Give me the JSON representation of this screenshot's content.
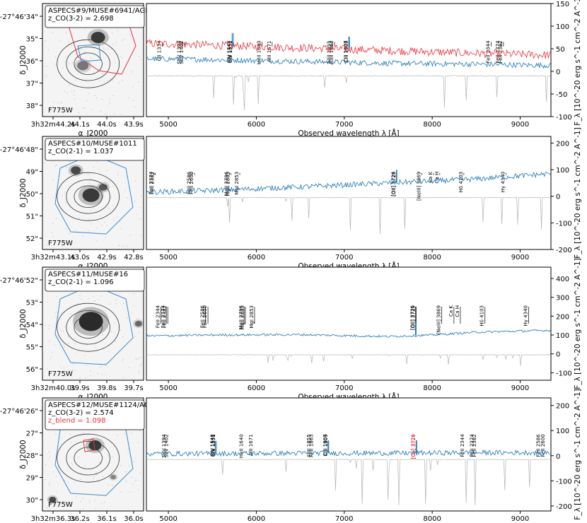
{
  "figure": {
    "shared_xlabel": "Observed wavelength λ [Å]",
    "right_ylabel": "F_λ [10^-20 erg s^-1 cm^-2 A^-1]",
    "image_ylabel": "δ_J2000",
    "image_xlabel": "α_J2000",
    "band_label": "F775W"
  },
  "colors": {
    "spectrum": "#1f77b4",
    "secondary_spectrum": "#e8323c",
    "sky": "#b4b4b4",
    "contour_radio": "#333333",
    "aperture_blue": "#3a8cd0",
    "aperture_red": "#e8323c",
    "zblend_text": "#e8323c"
  },
  "panels": [
    {
      "id": "p1",
      "annotation_lines": [
        "ASPECS#9/MUSE#6941/AGN",
        "z_CO(3-2) = 2.698"
      ],
      "dec_ticks": [
        "-27°46'34\"",
        "35\"",
        "36\"",
        "37\"",
        "38\""
      ],
      "ra_ticks": [
        "3h32m44.2s",
        "44.1s",
        "44.0s",
        "43.9s"
      ],
      "cutout_aperture": "red",
      "chart_data": {
        "type": "line",
        "title": "",
        "xlabel": "Observed wavelength λ [Å]",
        "ylabel": "F_λ [10^-20 erg s^-1 cm^-2 A^-1]",
        "xlim": [
          4750,
          9350
        ],
        "ylim": [
          -100,
          150
        ],
        "y_ticks": [
          -100,
          -50,
          0,
          50,
          100,
          150
        ],
        "x_ticks": [
          5000,
          6000,
          7000,
          8000,
          9000
        ],
        "grid": false,
        "series": [
          {
            "color": "#e8323c",
            "x": [
              4750,
              5500,
              6500,
              7500,
              8500,
              9350
            ],
            "y": [
              62,
              58,
              52,
              46,
              40,
              36
            ],
            "noise": 9
          },
          {
            "color": "#1f77b4",
            "x": [
              4750,
              5500,
              6500,
              7500,
              8500,
              9350
            ],
            "y": [
              28,
              26,
              22,
              18,
              16,
              13
            ],
            "noise": 6
          },
          {
            "color": "#b4b4b4",
            "x": [
              4750,
              9350
            ],
            "y": [
              -10,
              -10
            ],
            "noise": 1
          }
        ],
        "sky_line_depth": 80,
        "line_marker_top": 140,
        "line_marker_bottom": 55,
        "lines": [
          {
            "label": "CII 1334",
            "x": 4930
          },
          {
            "label": "SiIV 1394",
            "x": 5155
          },
          {
            "label": "SiIV 1402",
            "x": 5185
          },
          {
            "label": "SiII 1551",
            "x": 5735
          },
          {
            "label": "CIV 1548",
            "x": 5725
          },
          {
            "label": "CIV 1551",
            "x": 5738
          },
          {
            "label": "HeII 1640",
            "x": 6065
          },
          {
            "label": "AlII 1671",
            "x": 6180
          },
          {
            "label": "AlIII 1855",
            "x": 6860
          },
          {
            "label": "AlIII 1863",
            "x": 6890
          },
          {
            "label": "CIII 1907",
            "x": 7050
          },
          {
            "label": "CIII 1909",
            "x": 7060
          },
          {
            "label": "FeII 2344",
            "x": 8670
          },
          {
            "label": "FeII 2374",
            "x": 8780
          },
          {
            "label": "FeII 2382",
            "x": 8810
          }
        ]
      }
    },
    {
      "id": "p2",
      "annotation_lines": [
        "ASPECS#10/MUSE#1011",
        "z_CO(2-1) = 1.037"
      ],
      "dec_ticks": [
        "-27°46'48\"",
        "49\"",
        "50\"",
        "51\"",
        "52\""
      ],
      "ra_ticks": [
        "3h32m43.1s",
        "43.0s",
        "42.9s",
        "42.8s"
      ],
      "cutout_aperture": "blue",
      "chart_data": {
        "type": "line",
        "title": "",
        "xlabel": "Observed wavelength λ [Å]",
        "ylabel": "F_λ [10^-20 erg s^-1 cm^-2 A^-1]",
        "xlim": [
          4750,
          9350
        ],
        "ylim": [
          -200,
          225
        ],
        "y_ticks": [
          -200,
          -100,
          0,
          100,
          200
        ],
        "x_ticks": [
          5000,
          6000,
          7000,
          8000,
          9000
        ],
        "grid": false,
        "series": [
          {
            "color": "#1f77b4",
            "x": [
              4750,
              5500,
              6500,
              7500,
              8500,
              9350
            ],
            "y": [
              15,
              22,
              35,
              50,
              65,
              85
            ],
            "noise": 10
          },
          {
            "color": "#b4b4b4",
            "x": [
              4750,
              9350
            ],
            "y": [
              -5,
              -5
            ],
            "noise": 1
          }
        ],
        "sky_line_depth": 150,
        "line_marker_top": 215,
        "line_marker_bottom": 80,
        "lines": [
          {
            "label": "FeII 2374",
            "x": 4838
          },
          {
            "label": "FeII 2382",
            "x": 4852
          },
          {
            "label": "FeII 2586",
            "x": 5270
          },
          {
            "label": "FeII 2600",
            "x": 5297
          },
          {
            "label": "MgII 2796",
            "x": 5696
          },
          {
            "label": "MgII 2803",
            "x": 5711
          },
          {
            "label": "MgI 2853",
            "x": 5812
          },
          {
            "label": "[OII] 3726",
            "x": 7592
          },
          {
            "label": "[OII] 3729",
            "x": 7598
          },
          {
            "label": "[NeIII] 3869",
            "x": 7882
          },
          {
            "label": "Ca K",
            "x": 8015
          },
          {
            "label": "Ca H",
            "x": 8086
          },
          {
            "label": "Hδ 4103",
            "x": 8360
          },
          {
            "label": "Hγ 4340",
            "x": 8841
          }
        ]
      }
    },
    {
      "id": "p3",
      "annotation_lines": [
        "ASPECS#11/MUSE#16",
        "z_CO(2-1) = 1.096"
      ],
      "dec_ticks": [
        "-27°46'52\"",
        "53\"",
        "54\"",
        "55\"",
        "56\""
      ],
      "ra_ticks": [
        "3h32m40.0s",
        "39.9s",
        "39.8s",
        "39.7s"
      ],
      "cutout_aperture": "blue",
      "chart_data": {
        "type": "line",
        "title": "",
        "xlabel": "Observed wavelength λ [Å]",
        "ylabel": "F_λ [10^-20 erg s^-1 cm^-2 A^-1]",
        "xlim": [
          4750,
          9350
        ],
        "ylim": [
          -140,
          460
        ],
        "y_ticks": [
          -100,
          0,
          100,
          200,
          300,
          400
        ],
        "x_ticks": [
          5000,
          6000,
          7000,
          8000,
          9000
        ],
        "grid": false,
        "series": [
          {
            "color": "#1f77b4",
            "x": [
              4750,
              5500,
              6500,
              7500,
              8000,
              8500,
              9350
            ],
            "y": [
              95,
              100,
              102,
              92,
              100,
              115,
              125
            ],
            "noise": 6
          },
          {
            "color": "#b4b4b4",
            "x": [
              4750,
              9350
            ],
            "y": [
              -5,
              -5
            ],
            "noise": 1
          }
        ],
        "sky_line_depth": 60,
        "line_marker_top": 430,
        "line_marker_bottom": 160,
        "lines": [
          {
            "label": "FeII 2344",
            "x": 4913
          },
          {
            "label": "FeII 2374",
            "x": 4976
          },
          {
            "label": "FeII 2382",
            "x": 4993
          },
          {
            "label": "FeII 2586",
            "x": 5421
          },
          {
            "label": "FeII 2600",
            "x": 5450
          },
          {
            "label": "MgII 2796",
            "x": 5861
          },
          {
            "label": "MgII 2803",
            "x": 5876
          },
          {
            "label": "MgI 2853",
            "x": 5980
          },
          {
            "label": "[OII] 3726",
            "x": 7810
          },
          {
            "label": "[OII] 3729",
            "x": 7817
          },
          {
            "label": "[NeIII] 3869",
            "x": 8109
          },
          {
            "label": "Ca K",
            "x": 8247
          },
          {
            "label": "Ca H",
            "x": 8320
          },
          {
            "label": "Hδ 4103",
            "x": 8600
          },
          {
            "label": "Hγ 4340",
            "x": 9097
          }
        ]
      }
    },
    {
      "id": "p4",
      "annotation_lines": [
        "ASPECS#12/MUSE#1124/AGN",
        "z_CO(3-2) = 2.574",
        "z_blend = 1.098"
      ],
      "dec_ticks": [
        "-27°46'26\"",
        "27\"",
        "28\"",
        "29\"",
        "30\""
      ],
      "ra_ticks": [
        "3h32m36.3s",
        "36.2s",
        "36.1s",
        "36.0s"
      ],
      "cutout_aperture": "blue+red",
      "chart_data": {
        "type": "line",
        "title": "",
        "xlabel": "Observed wavelength λ [Å]",
        "ylabel": "F_λ [10^-20 erg s^-1 cm^-2 A^-1]",
        "xlim": [
          4750,
          9350
        ],
        "ylim": [
          -220,
          230
        ],
        "y_ticks": [
          -200,
          -100,
          0,
          100,
          200
        ],
        "x_ticks": [
          5000,
          6000,
          7000,
          8000,
          9000
        ],
        "grid": false,
        "series": [
          {
            "color": "#1f77b4",
            "x": [
              4750,
              5500,
              6500,
              7500,
              8500,
              9350
            ],
            "y": [
              8,
              8,
              10,
              10,
              12,
              12
            ],
            "noise": 10
          },
          {
            "color": "#b4b4b4",
            "x": [
              4750,
              9350
            ],
            "y": [
              -15,
              -15
            ],
            "noise": 1
          }
        ],
        "sky_line_depth": 190,
        "line_marker_top": 215,
        "line_marker_bottom": 80,
        "lines": [
          {
            "label": "SiIV 1394",
            "x": 4982
          },
          {
            "label": "SiIV 1402",
            "x": 5010
          },
          {
            "label": "SiII 1551",
            "x": 5543
          },
          {
            "label": "CIV 1548",
            "x": 5533
          },
          {
            "label": "CIV 1551",
            "x": 5545
          },
          {
            "label": "HeII 1640",
            "x": 5862
          },
          {
            "label": "AlII 1671",
            "x": 5972
          },
          {
            "label": "AlIII 1855",
            "x": 6630
          },
          {
            "label": "AlIII 1863",
            "x": 6658
          },
          {
            "label": "CIII 1907",
            "x": 6815
          },
          {
            "label": "CIII 1909",
            "x": 6823
          },
          {
            "label": "[OII] 3726",
            "x": 7817,
            "red": true
          },
          {
            "label": "[OII] 3729",
            "x": 7824,
            "red": true
          },
          {
            "label": "FeII 2344",
            "x": 8378
          },
          {
            "label": "FeII 2374",
            "x": 8485
          },
          {
            "label": "FeII 2382",
            "x": 8514
          },
          {
            "label": "FeII 2586",
            "x": 9243
          },
          {
            "label": "FeII 2600",
            "x": 9293
          }
        ]
      }
    }
  ]
}
